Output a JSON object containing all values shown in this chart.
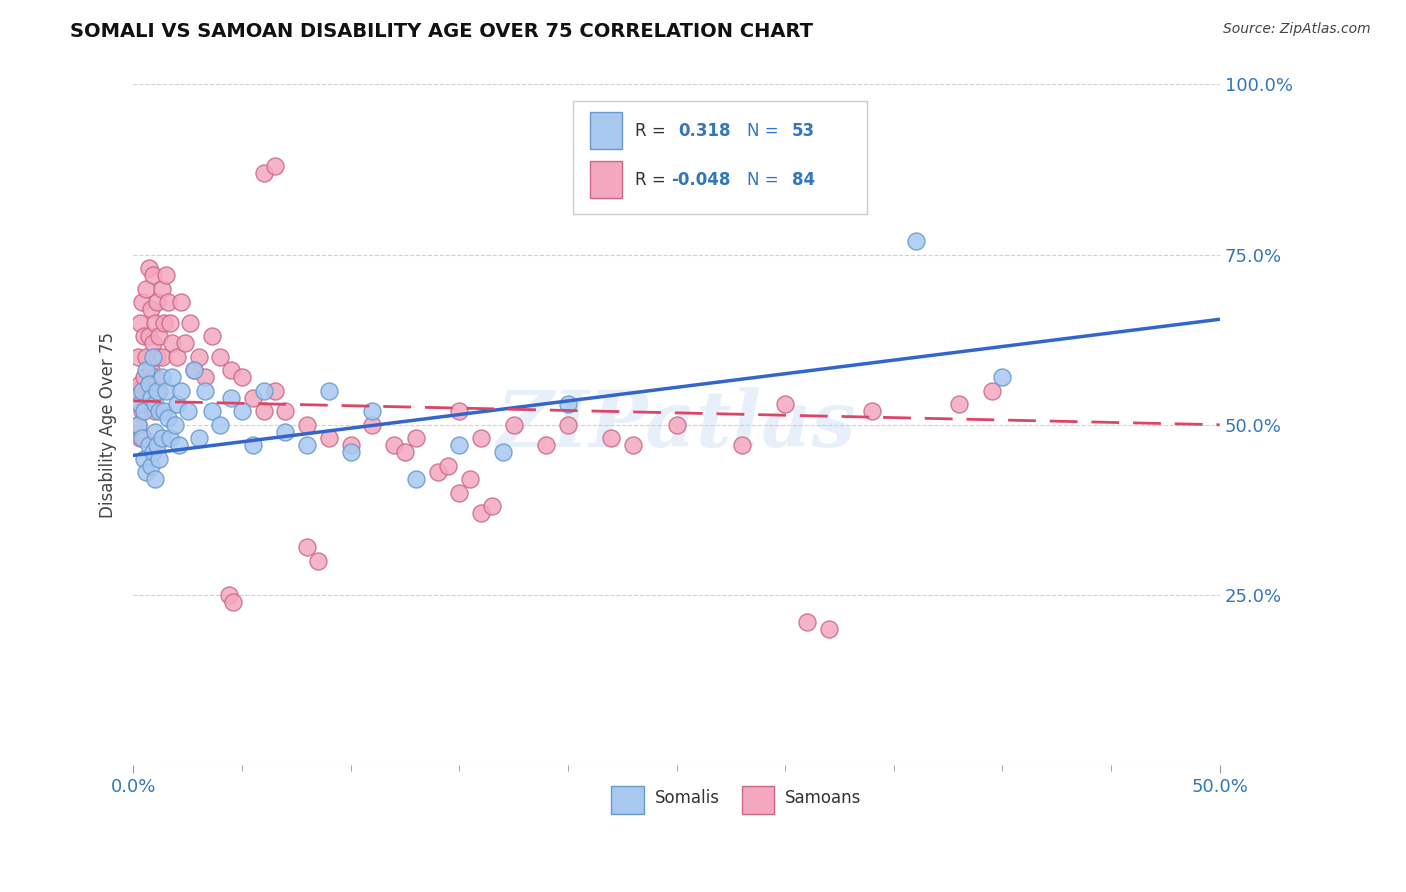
{
  "title": "SOMALI VS SAMOAN DISABILITY AGE OVER 75 CORRELATION CHART",
  "source": "Source: ZipAtlas.com",
  "ylabel": "Disability Age Over 75",
  "xlim": [
    0.0,
    0.5
  ],
  "ylim": [
    0.0,
    1.0
  ],
  "xtick_positions": [
    0.0,
    0.5
  ],
  "xtick_labels": [
    "0.0%",
    "50.0%"
  ],
  "ytick_labels_right": [
    "",
    "25.0%",
    "50.0%",
    "75.0%",
    "100.0%"
  ],
  "yticks_right": [
    0.0,
    0.25,
    0.5,
    0.75,
    1.0
  ],
  "somali_color": "#A8C8F0",
  "samoan_color": "#F4A8C0",
  "somali_edge": "#6699CC",
  "samoan_edge": "#CC6688",
  "trend_blue": "#3366CC",
  "trend_pink": "#DD4466",
  "watermark": "ZIPatlas",
  "watermark_color": "#AACCEE",
  "somali_x": [
    0.002,
    0.003,
    0.004,
    0.004,
    0.005,
    0.005,
    0.006,
    0.006,
    0.007,
    0.007,
    0.008,
    0.008,
    0.009,
    0.009,
    0.01,
    0.01,
    0.01,
    0.011,
    0.011,
    0.012,
    0.012,
    0.013,
    0.013,
    0.014,
    0.015,
    0.016,
    0.017,
    0.018,
    0.019,
    0.02,
    0.021,
    0.022,
    0.025,
    0.028,
    0.03,
    0.033,
    0.036,
    0.04,
    0.045,
    0.05,
    0.055,
    0.06,
    0.07,
    0.08,
    0.09,
    0.1,
    0.11,
    0.13,
    0.15,
    0.17,
    0.2,
    0.36,
    0.4
  ],
  "somali_y": [
    0.5,
    0.53,
    0.48,
    0.55,
    0.52,
    0.45,
    0.58,
    0.43,
    0.56,
    0.47,
    0.54,
    0.44,
    0.6,
    0.46,
    0.53,
    0.49,
    0.42,
    0.55,
    0.47,
    0.52,
    0.45,
    0.57,
    0.48,
    0.52,
    0.55,
    0.51,
    0.48,
    0.57,
    0.5,
    0.53,
    0.47,
    0.55,
    0.52,
    0.58,
    0.48,
    0.55,
    0.52,
    0.5,
    0.54,
    0.52,
    0.47,
    0.55,
    0.49,
    0.47,
    0.55,
    0.46,
    0.52,
    0.42,
    0.47,
    0.46,
    0.53,
    0.77,
    0.57
  ],
  "samoan_x": [
    0.001,
    0.002,
    0.002,
    0.003,
    0.003,
    0.003,
    0.004,
    0.004,
    0.005,
    0.005,
    0.005,
    0.006,
    0.006,
    0.006,
    0.007,
    0.007,
    0.007,
    0.008,
    0.008,
    0.009,
    0.009,
    0.01,
    0.01,
    0.01,
    0.011,
    0.011,
    0.012,
    0.012,
    0.013,
    0.013,
    0.014,
    0.015,
    0.016,
    0.017,
    0.018,
    0.02,
    0.022,
    0.024,
    0.026,
    0.028,
    0.03,
    0.033,
    0.036,
    0.04,
    0.045,
    0.05,
    0.055,
    0.06,
    0.065,
    0.07,
    0.08,
    0.09,
    0.1,
    0.11,
    0.13,
    0.15,
    0.16,
    0.175,
    0.19,
    0.2,
    0.22,
    0.23,
    0.25,
    0.28,
    0.3,
    0.34,
    0.38,
    0.395,
    0.15,
    0.155,
    0.16,
    0.165,
    0.14,
    0.145,
    0.12,
    0.125,
    0.31,
    0.32,
    0.08,
    0.085,
    0.06,
    0.065,
    0.044,
    0.046
  ],
  "samoan_y": [
    0.55,
    0.6,
    0.5,
    0.65,
    0.56,
    0.48,
    0.68,
    0.52,
    0.63,
    0.57,
    0.48,
    0.7,
    0.6,
    0.53,
    0.73,
    0.63,
    0.56,
    0.67,
    0.58,
    0.72,
    0.62,
    0.65,
    0.57,
    0.52,
    0.68,
    0.6,
    0.63,
    0.55,
    0.7,
    0.6,
    0.65,
    0.72,
    0.68,
    0.65,
    0.62,
    0.6,
    0.68,
    0.62,
    0.65,
    0.58,
    0.6,
    0.57,
    0.63,
    0.6,
    0.58,
    0.57,
    0.54,
    0.52,
    0.55,
    0.52,
    0.5,
    0.48,
    0.47,
    0.5,
    0.48,
    0.52,
    0.48,
    0.5,
    0.47,
    0.5,
    0.48,
    0.47,
    0.5,
    0.47,
    0.53,
    0.52,
    0.53,
    0.55,
    0.4,
    0.42,
    0.37,
    0.38,
    0.43,
    0.44,
    0.47,
    0.46,
    0.21,
    0.2,
    0.32,
    0.3,
    0.87,
    0.88,
    0.25,
    0.24
  ]
}
